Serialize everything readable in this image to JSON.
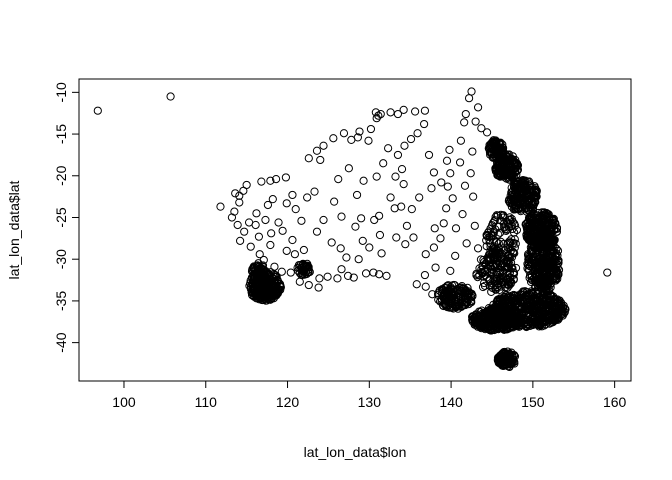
{
  "chart_data": {
    "type": "scatter",
    "title": "",
    "xlabel": "lat_lon_data$lon",
    "ylabel": "lat_lon_data$lat",
    "xlim": [
      94.5,
      162.0
    ],
    "ylim": [
      -44.6,
      -8.4
    ],
    "x_ticks": [
      100,
      110,
      120,
      130,
      140,
      150,
      160
    ],
    "y_ticks": [
      -10,
      -15,
      -20,
      -25,
      -30,
      -35,
      -40
    ],
    "marker": "open-circle",
    "grid": false,
    "legend": "none",
    "colors": {
      "points": "#000000",
      "axes": "#000000",
      "background": "#ffffff"
    },
    "series": [
      {
        "name": "",
        "points": [
          [
            96.8,
            -12.2
          ],
          [
            105.7,
            -10.5
          ],
          [
            159.1,
            -31.6
          ],
          [
            111.8,
            -23.7
          ],
          [
            113.6,
            -22.1
          ],
          [
            114.1,
            -22.4
          ],
          [
            114.6,
            -21.8
          ],
          [
            115.0,
            -21.1
          ],
          [
            116.8,
            -20.7
          ],
          [
            117.9,
            -20.6
          ],
          [
            118.6,
            -20.4
          ],
          [
            119.8,
            -20.2
          ],
          [
            118.2,
            -22.8
          ],
          [
            117.6,
            -23.5
          ],
          [
            116.2,
            -24.5
          ],
          [
            115.3,
            -25.6
          ],
          [
            114.7,
            -26.7
          ],
          [
            114.2,
            -27.8
          ],
          [
            113.9,
            -25.9
          ],
          [
            113.2,
            -25.0
          ],
          [
            113.5,
            -24.3
          ],
          [
            114.1,
            -23.2
          ],
          [
            115.5,
            -28.5
          ],
          [
            116.6,
            -29.4
          ],
          [
            117.1,
            -30.1
          ],
          [
            118.4,
            -30.9
          ],
          [
            119.3,
            -31.5
          ],
          [
            120.4,
            -31.6
          ],
          [
            121.4,
            -30.7
          ],
          [
            121.5,
            -32.7
          ],
          [
            122.6,
            -33.1
          ],
          [
            123.8,
            -33.4
          ],
          [
            123.9,
            -32.3
          ],
          [
            124.9,
            -32.1
          ],
          [
            126.1,
            -32.3
          ],
          [
            127.4,
            -32.0
          ],
          [
            128.1,
            -32.2
          ],
          [
            129.6,
            -31.7
          ],
          [
            130.5,
            -31.6
          ],
          [
            131.2,
            -31.8
          ],
          [
            132.1,
            -32.0
          ],
          [
            121.0,
            -24.0
          ],
          [
            122.4,
            -22.6
          ],
          [
            123.3,
            -21.9
          ],
          [
            124.0,
            -18.1
          ],
          [
            122.6,
            -17.9
          ],
          [
            123.6,
            -17.0
          ],
          [
            124.4,
            -16.4
          ],
          [
            125.6,
            -15.5
          ],
          [
            126.9,
            -14.9
          ],
          [
            127.8,
            -15.7
          ],
          [
            128.6,
            -15.4
          ],
          [
            128.8,
            -14.7
          ],
          [
            129.9,
            -15.8
          ],
          [
            130.2,
            -14.4
          ],
          [
            130.8,
            -12.4
          ],
          [
            131.1,
            -12.8
          ],
          [
            130.9,
            -13.1
          ],
          [
            131.4,
            -12.6
          ],
          [
            132.6,
            -12.4
          ],
          [
            133.5,
            -12.6
          ],
          [
            134.2,
            -12.1
          ],
          [
            135.6,
            -12.3
          ],
          [
            136.8,
            -12.2
          ],
          [
            136.7,
            -13.8
          ],
          [
            135.9,
            -14.9
          ],
          [
            135.1,
            -15.6
          ],
          [
            134.3,
            -16.4
          ],
          [
            133.5,
            -17.5
          ],
          [
            134.0,
            -19.2
          ],
          [
            133.2,
            -20.1
          ],
          [
            134.2,
            -21.0
          ],
          [
            133.9,
            -23.7
          ],
          [
            133.1,
            -23.9
          ],
          [
            132.6,
            -22.6
          ],
          [
            131.2,
            -24.8
          ],
          [
            130.6,
            -25.3
          ],
          [
            129.0,
            -25.1
          ],
          [
            128.3,
            -26.1
          ],
          [
            126.6,
            -24.9
          ],
          [
            125.7,
            -23.1
          ],
          [
            126.2,
            -20.4
          ],
          [
            127.5,
            -19.1
          ],
          [
            129.3,
            -20.6
          ],
          [
            128.5,
            -22.3
          ],
          [
            130.9,
            -20.1
          ],
          [
            131.7,
            -18.5
          ],
          [
            132.3,
            -16.7
          ],
          [
            137.3,
            -17.5
          ],
          [
            137.9,
            -19.6
          ],
          [
            138.8,
            -20.8
          ],
          [
            137.6,
            -21.5
          ],
          [
            136.1,
            -22.6
          ],
          [
            135.2,
            -24.0
          ],
          [
            134.6,
            -26.0
          ],
          [
            135.4,
            -27.4
          ],
          [
            134.4,
            -28.2
          ],
          [
            133.3,
            -27.4
          ],
          [
            136.9,
            -29.4
          ],
          [
            137.9,
            -28.6
          ],
          [
            138.7,
            -27.5
          ],
          [
            139.1,
            -25.7
          ],
          [
            139.4,
            -23.9
          ],
          [
            138.0,
            -26.3
          ],
          [
            140.2,
            -22.7
          ],
          [
            139.6,
            -21.3
          ],
          [
            139.9,
            -19.7
          ],
          [
            139.5,
            -18.2
          ],
          [
            139.8,
            -16.9
          ],
          [
            141.2,
            -15.8
          ],
          [
            141.6,
            -13.6
          ],
          [
            141.8,
            -12.6
          ],
          [
            142.2,
            -10.7
          ],
          [
            142.5,
            -9.9
          ],
          [
            143.3,
            -11.8
          ],
          [
            143.0,
            -13.5
          ],
          [
            143.7,
            -14.3
          ],
          [
            144.4,
            -14.8
          ],
          [
            145.3,
            -15.9
          ],
          [
            142.6,
            -17.1
          ],
          [
            141.1,
            -18.4
          ],
          [
            142.4,
            -19.7
          ],
          [
            141.7,
            -21.2
          ],
          [
            142.7,
            -22.5
          ],
          [
            141.4,
            -24.6
          ],
          [
            140.6,
            -26.3
          ],
          [
            142.9,
            -26.0
          ],
          [
            141.9,
            -28.1
          ],
          [
            143.3,
            -28.7
          ],
          [
            140.5,
            -29.6
          ],
          [
            139.9,
            -31.4
          ],
          [
            138.1,
            -31.0
          ],
          [
            136.8,
            -31.9
          ],
          [
            135.8,
            -33.0
          ],
          [
            136.9,
            -33.3
          ],
          [
            137.7,
            -34.2
          ],
          [
            122.0,
            -28.9
          ],
          [
            120.6,
            -27.7
          ],
          [
            121.7,
            -25.4
          ],
          [
            119.4,
            -26.6
          ],
          [
            118.9,
            -25.6
          ],
          [
            118.0,
            -26.9
          ],
          [
            119.9,
            -29.0
          ],
          [
            120.9,
            -29.4
          ],
          [
            117.9,
            -28.3
          ],
          [
            116.5,
            -27.3
          ],
          [
            119.9,
            -23.3
          ],
          [
            120.6,
            -22.3
          ],
          [
            117.3,
            -25.3
          ],
          [
            116.1,
            -25.9
          ],
          [
            126.5,
            -28.7
          ],
          [
            125.4,
            -28.0
          ],
          [
            123.6,
            -26.7
          ],
          [
            124.4,
            -25.3
          ],
          [
            126.6,
            -31.2
          ],
          [
            128.7,
            -30.0
          ],
          [
            127.2,
            -29.8
          ],
          [
            130.0,
            -28.6
          ],
          [
            131.5,
            -29.3
          ],
          [
            131.3,
            -27.1
          ],
          [
            129.2,
            -27.8
          ]
        ]
      }
    ]
  }
}
